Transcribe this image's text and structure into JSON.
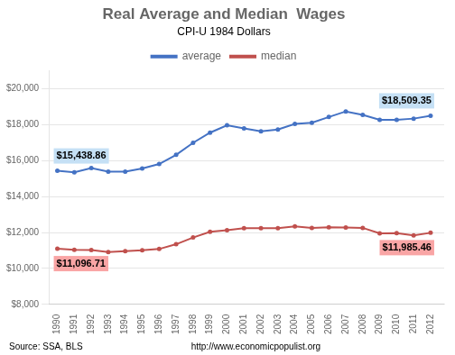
{
  "chart_data": {
    "type": "line",
    "title": "Real Average and Median  Wages",
    "subtitle": "CPI-U 1984 Dollars",
    "source": [
      "Source: SSA, BLS",
      "http://www.economicpopulist.org"
    ],
    "x": [
      1990,
      1991,
      1992,
      1993,
      1994,
      1995,
      1996,
      1997,
      1998,
      1999,
      2000,
      2001,
      2002,
      2003,
      2004,
      2005,
      2006,
      2007,
      2008,
      2009,
      2010,
      2011,
      2012
    ],
    "series": [
      {
        "name": "average",
        "color": "#4472c4",
        "marker": "circle",
        "line_style": "solid",
        "values": [
          15438.86,
          15357,
          15596,
          15389,
          15397,
          15568,
          15815,
          16330,
          16999,
          17565,
          17979,
          17800,
          17640,
          17736,
          18055,
          18115,
          18437,
          18748,
          18558,
          18285,
          18279,
          18348,
          18509.35
        ]
      },
      {
        "name": "median",
        "color": "#c0504d",
        "marker": "circle",
        "line_style": "solid",
        "values": [
          11096.71,
          11039,
          11019,
          10918,
          10965,
          11009,
          11082,
          11348,
          11722,
          12040,
          12128,
          12237,
          12243,
          12239,
          12340,
          12257,
          12293,
          12285,
          12261,
          11952,
          11964,
          11840,
          11985.46
        ]
      }
    ],
    "xlim": [
      1989.5,
      2012.8
    ],
    "xticks": [
      1990,
      1991,
      1992,
      1993,
      1994,
      1995,
      1996,
      1997,
      1998,
      1999,
      2000,
      2001,
      2002,
      2003,
      2004,
      2005,
      2006,
      2007,
      2008,
      2009,
      2010,
      2011,
      2012
    ],
    "ylim": [
      8000,
      21000
    ],
    "yticks": [
      {
        "value": 8000,
        "label": "$8,000"
      },
      {
        "value": 10000,
        "label": "$10,000"
      },
      {
        "value": 12000,
        "label": "$12,000"
      },
      {
        "value": 14000,
        "label": "$14,000"
      },
      {
        "value": 16000,
        "label": "$16,000"
      },
      {
        "value": 18000,
        "label": "$18,000"
      },
      {
        "value": 20000,
        "label": "$20,000"
      }
    ],
    "grid": "y",
    "legend": "top",
    "annotations": [
      {
        "text": "$15,438.86",
        "series": "average",
        "color": "#c5e0f5"
      },
      {
        "text": "$18,509.35",
        "series": "average",
        "color": "#c5e0f5"
      },
      {
        "text": "$11,096.71",
        "series": "median",
        "color": "#f9a5a5"
      },
      {
        "text": "$11,985.46",
        "series": "median",
        "color": "#f9a5a5"
      }
    ]
  }
}
